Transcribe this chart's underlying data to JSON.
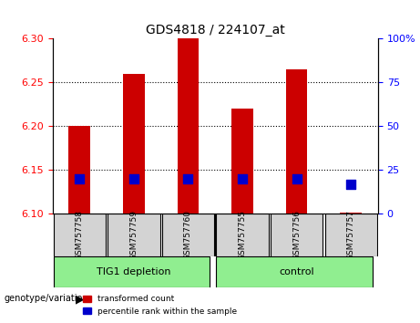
{
  "title": "GDS4818 / 224107_at",
  "samples": [
    "GSM757758",
    "GSM757759",
    "GSM757760",
    "GSM757755",
    "GSM757756",
    "GSM757757"
  ],
  "bar_heights": [
    6.2,
    6.26,
    6.3,
    6.22,
    6.265,
    6.102
  ],
  "baseline": 6.1,
  "percentile_ranks": [
    20,
    20,
    20,
    20,
    20,
    17
  ],
  "ylim_left": [
    6.1,
    6.3
  ],
  "ylim_right": [
    0,
    100
  ],
  "yticks_left": [
    6.1,
    6.15,
    6.2,
    6.25,
    6.3
  ],
  "yticks_right": [
    0,
    25,
    50,
    75,
    100
  ],
  "ytick_labels_right": [
    "0",
    "25",
    "50",
    "75",
    "100%"
  ],
  "bar_color": "#cc0000",
  "percentile_color": "#0000cc",
  "group1_label": "TIG1 depletion",
  "group2_label": "control",
  "group1_indices": [
    0,
    1,
    2
  ],
  "group2_indices": [
    3,
    4,
    5
  ],
  "group_bg_color": "#90ee90",
  "sample_bg_color": "#d3d3d3",
  "legend_red_label": "transformed count",
  "legend_blue_label": "percentile rank within the sample",
  "genotype_label": "genotype/variation",
  "bar_width": 0.4,
  "percentile_marker_size": 60
}
